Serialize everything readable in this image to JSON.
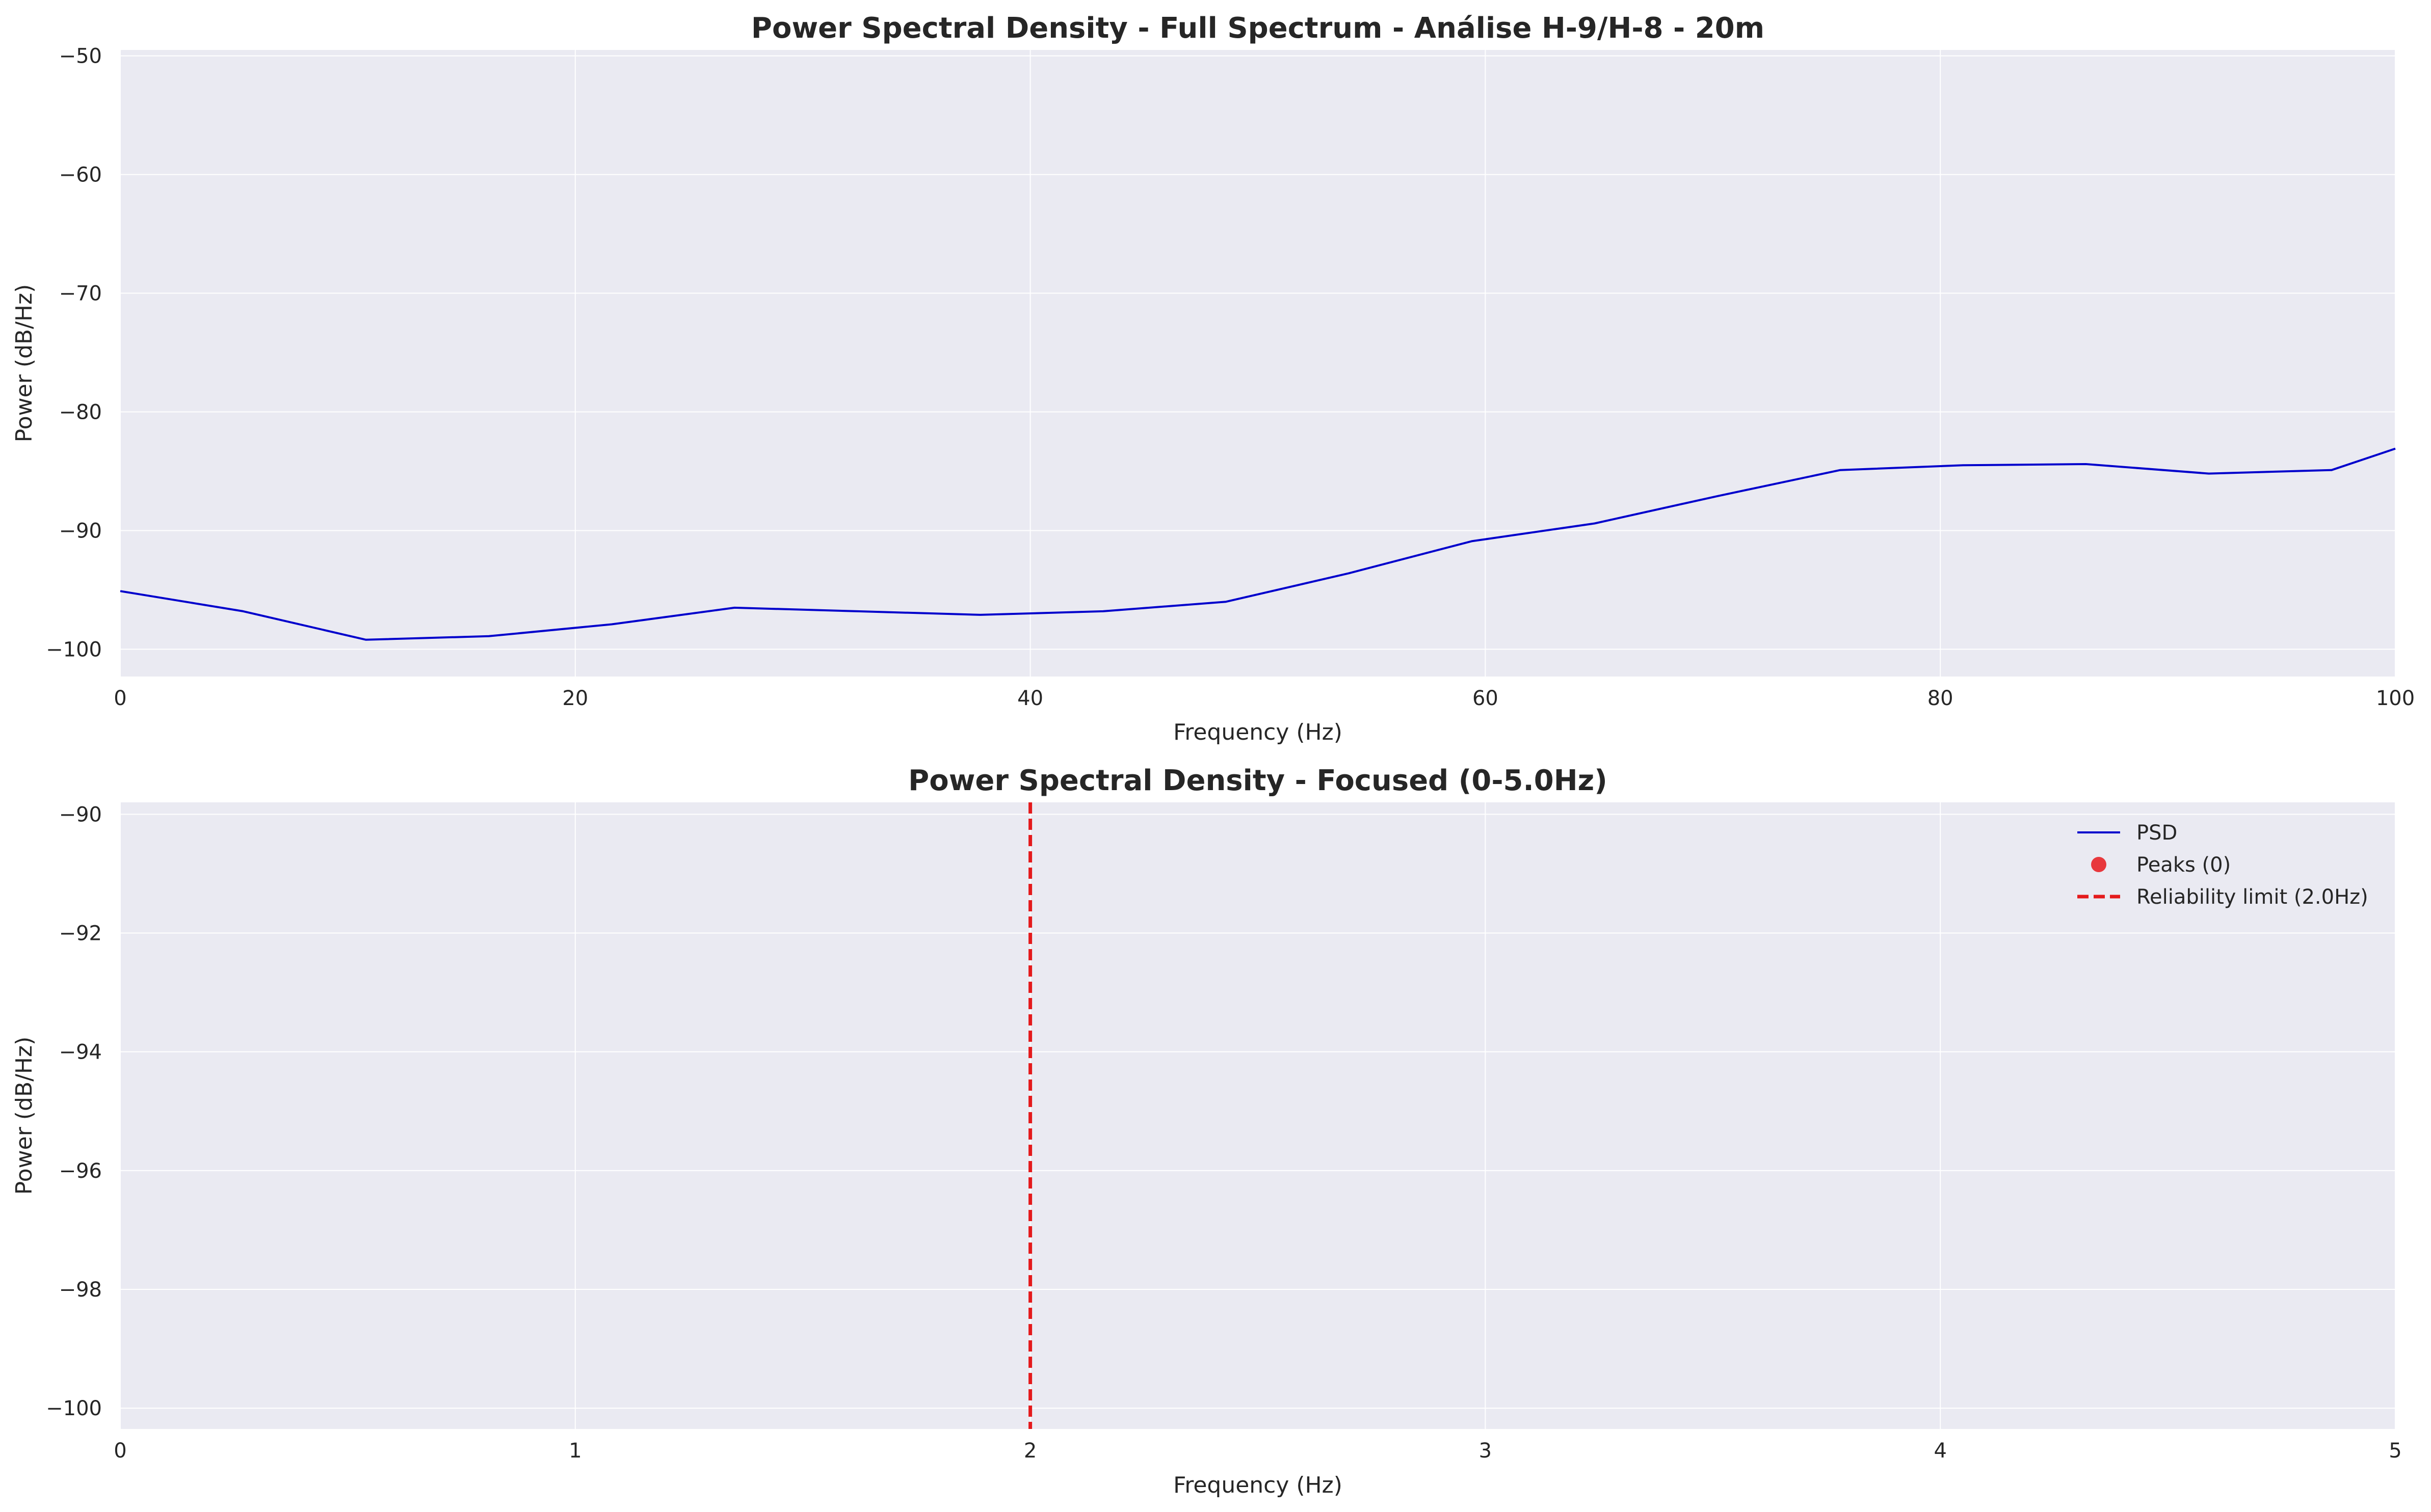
{
  "chart_data": [
    {
      "type": "line",
      "title": "Power Spectral Density - Full Spectrum - Análise H-9/H-8 - 20m",
      "xlabel": "Frequency (Hz)",
      "ylabel": "Power (dB/Hz)",
      "xlim": [
        0,
        100
      ],
      "ylim": [
        -102.3,
        -49.5
      ],
      "xticks": [
        0,
        20,
        40,
        60,
        80,
        100
      ],
      "xtick_labels": [
        "0",
        "20",
        "40",
        "60",
        "80",
        "100"
      ],
      "yticks": [
        -100,
        -90,
        -80,
        -70,
        -60,
        -50
      ],
      "ytick_labels": [
        "−100",
        "−90",
        "−80",
        "−70",
        "−60",
        "−50"
      ],
      "grid": true,
      "series": [
        {
          "color": "#0000cc",
          "x": [
            0,
            5.4,
            10.8,
            16.2,
            21.6,
            27.0,
            32.4,
            37.8,
            43.2,
            48.6,
            54.0,
            59.4,
            64.8,
            70.2,
            75.6,
            81.0,
            86.4,
            91.8,
            97.2,
            100
          ],
          "y": [
            -95.1,
            -96.8,
            -99.2,
            -98.9,
            -97.9,
            -96.5,
            -96.8,
            -97.1,
            -96.8,
            -96.0,
            -93.6,
            -90.9,
            -89.4,
            -87.1,
            -84.9,
            -84.5,
            -84.4,
            -85.2,
            -84.9,
            -83.1
          ]
        }
      ]
    },
    {
      "type": "line",
      "title": "Power Spectral Density - Focused (0-5.0Hz)",
      "xlabel": "Frequency (Hz)",
      "ylabel": "Power (dB/Hz)",
      "xlim": [
        0,
        5
      ],
      "ylim": [
        -100.35,
        -89.8
      ],
      "xticks": [
        0,
        1,
        2,
        3,
        4,
        5
      ],
      "xtick_labels": [
        "0",
        "1",
        "2",
        "3",
        "4",
        "5"
      ],
      "yticks": [
        -100,
        -98,
        -96,
        -94,
        -92,
        -90
      ],
      "ytick_labels": [
        "−100",
        "−98",
        "−96",
        "−94",
        "−92",
        "−90"
      ],
      "grid": true,
      "legend_position": "top-right",
      "legend": [
        {
          "label": "PSD",
          "kind": "line",
          "color": "#0000cc"
        },
        {
          "label": "Peaks (0)",
          "kind": "marker",
          "color": "#e8383d"
        },
        {
          "label": "Reliability limit (2.0Hz)",
          "kind": "dashed-line",
          "color": "#e41a1c"
        }
      ],
      "series": [
        {
          "name": "PSD",
          "color": "#0000cc",
          "x": [],
          "y": []
        },
        {
          "name": "Peaks (0)",
          "color": "#e8383d",
          "x": [],
          "y": []
        }
      ],
      "vlines": [
        {
          "x": 2.0,
          "name": "Reliability limit (2.0Hz)",
          "color": "#e41a1c",
          "style": "dashed"
        }
      ]
    }
  ],
  "colors": {
    "axes_background": "#eaeaf2",
    "grid": "#ffffff"
  }
}
